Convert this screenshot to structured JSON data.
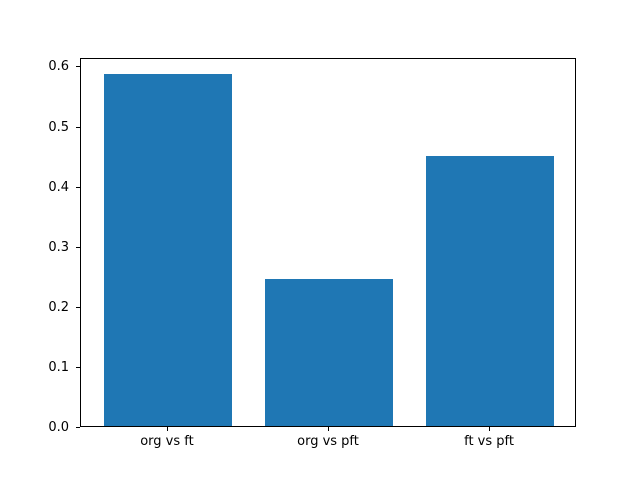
{
  "chart_data": {
    "type": "bar",
    "categories": [
      "org vs ft",
      "org vs pft",
      "ft vs pft"
    ],
    "values": [
      0.585,
      0.244,
      0.45
    ],
    "title": "",
    "xlabel": "",
    "ylabel": "",
    "ylim": [
      0,
      0.614
    ],
    "xlim": [
      -0.54,
      2.54
    ],
    "yticks": [
      0.0,
      0.1,
      0.2,
      0.3,
      0.4,
      0.5,
      0.6
    ],
    "bar_width": 0.8,
    "bar_color": "#1f77b4",
    "background_color": "#ffffff",
    "spine_color": "#000000",
    "grid": false,
    "legend": null
  }
}
